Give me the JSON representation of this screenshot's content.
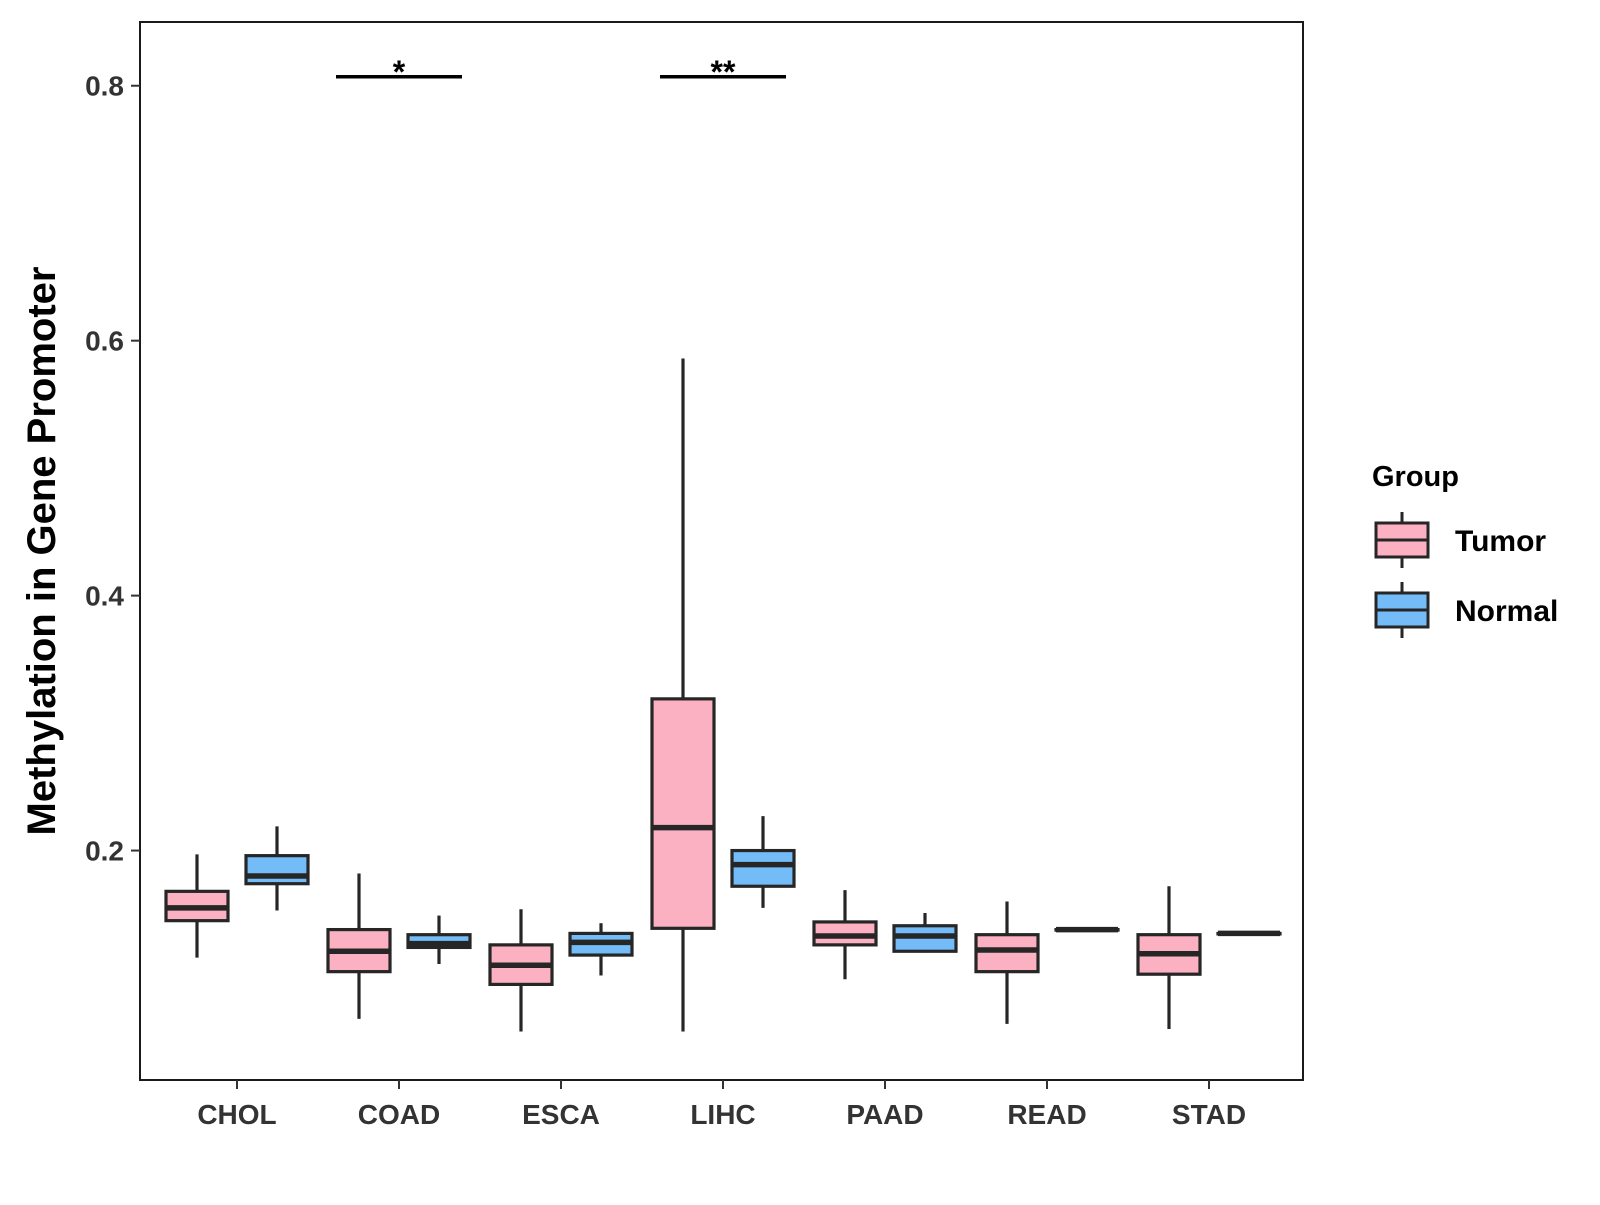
{
  "chart_data": {
    "type": "boxplot",
    "title": "",
    "xlabel": "",
    "ylabel": "Methylation in Gene Promoter",
    "ylim": [
      0.02,
      0.85
    ],
    "y_ticks": [
      {
        "value": 0.2,
        "label": "0.2"
      },
      {
        "value": 0.4,
        "label": "0.4"
      },
      {
        "value": 0.6,
        "label": "0.6"
      },
      {
        "value": 0.8,
        "label": "0.8"
      }
    ],
    "categories": [
      "CHOL",
      "COAD",
      "ESCA",
      "LIHC",
      "PAAD",
      "READ",
      "STAD"
    ],
    "legend": {
      "title": "Group",
      "position": "right",
      "entries": [
        {
          "name": "Tumor",
          "color": "#fcb1c3"
        },
        {
          "name": "Normal",
          "color": "#74bcf8"
        }
      ]
    },
    "series": [
      {
        "name": "Tumor",
        "color": "#fcb1c3",
        "boxes": [
          {
            "category": "CHOL",
            "min": 0.116,
            "q1": 0.145,
            "median": 0.155,
            "q3": 0.168,
            "max": 0.197
          },
          {
            "category": "COAD",
            "min": 0.068,
            "q1": 0.105,
            "median": 0.121,
            "q3": 0.138,
            "max": 0.182
          },
          {
            "category": "ESCA",
            "min": 0.058,
            "q1": 0.095,
            "median": 0.11,
            "q3": 0.126,
            "max": 0.154
          },
          {
            "category": "LIHC",
            "min": 0.058,
            "q1": 0.139,
            "median": 0.218,
            "q3": 0.319,
            "max": 0.586
          },
          {
            "category": "PAAD",
            "min": 0.099,
            "q1": 0.126,
            "median": 0.133,
            "q3": 0.144,
            "max": 0.169
          },
          {
            "category": "READ",
            "min": 0.064,
            "q1": 0.105,
            "median": 0.122,
            "q3": 0.134,
            "max": 0.16
          },
          {
            "category": "STAD",
            "min": 0.06,
            "q1": 0.103,
            "median": 0.119,
            "q3": 0.134,
            "max": 0.172
          }
        ]
      },
      {
        "name": "Normal",
        "color": "#74bcf8",
        "boxes": [
          {
            "category": "CHOL",
            "min": 0.153,
            "q1": 0.174,
            "median": 0.18,
            "q3": 0.196,
            "max": 0.219
          },
          {
            "category": "COAD",
            "min": 0.111,
            "q1": 0.124,
            "median": 0.127,
            "q3": 0.134,
            "max": 0.149
          },
          {
            "category": "ESCA",
            "min": 0.102,
            "q1": 0.118,
            "median": 0.128,
            "q3": 0.135,
            "max": 0.143
          },
          {
            "category": "LIHC",
            "min": 0.155,
            "q1": 0.172,
            "median": 0.189,
            "q3": 0.2,
            "max": 0.227
          },
          {
            "category": "PAAD",
            "min": 0.12,
            "q1": 0.121,
            "median": 0.133,
            "q3": 0.141,
            "max": 0.151
          },
          {
            "category": "READ",
            "min": 0.138,
            "q1": 0.138,
            "median": 0.138,
            "q3": 0.138,
            "max": 0.138
          },
          {
            "category": "STAD",
            "min": 0.135,
            "q1": 0.135,
            "median": 0.135,
            "q3": 0.135,
            "max": 0.135
          }
        ]
      }
    ],
    "annotations": [
      {
        "category": "COAD",
        "label": "*",
        "y": 0.807
      },
      {
        "category": "LIHC",
        "label": "**",
        "y": 0.807
      }
    ]
  }
}
